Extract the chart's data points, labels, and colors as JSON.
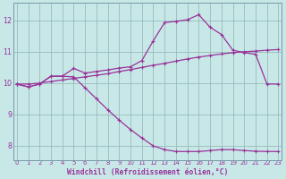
{
  "xlabel": "Windchill (Refroidissement éolien,°C)",
  "bg_color": "#c8e8e8",
  "line_color": "#993399",
  "grid_color": "#99bbbb",
  "spine_color": "#7799aa",
  "x_min": -0.3,
  "x_max": 23.3,
  "y_min": 7.55,
  "y_max": 12.55,
  "yticks": [
    8,
    9,
    10,
    11,
    12
  ],
  "xticks": [
    0,
    1,
    2,
    3,
    4,
    5,
    6,
    7,
    8,
    9,
    10,
    11,
    12,
    13,
    14,
    15,
    16,
    17,
    18,
    19,
    20,
    21,
    22,
    23
  ],
  "curve_upper": [
    [
      0,
      9.97
    ],
    [
      1,
      9.88
    ],
    [
      2,
      9.97
    ],
    [
      3,
      10.22
    ],
    [
      4,
      10.22
    ],
    [
      5,
      10.47
    ],
    [
      6,
      10.32
    ],
    [
      7,
      10.37
    ],
    [
      8,
      10.42
    ],
    [
      9,
      10.48
    ],
    [
      10,
      10.52
    ],
    [
      11,
      10.72
    ],
    [
      12,
      11.35
    ],
    [
      13,
      11.93
    ],
    [
      14,
      11.97
    ],
    [
      15,
      12.02
    ],
    [
      16,
      12.18
    ],
    [
      17,
      11.78
    ],
    [
      18,
      11.55
    ],
    [
      19,
      11.05
    ],
    [
      20,
      10.97
    ],
    [
      21,
      10.92
    ],
    [
      22,
      9.97
    ],
    [
      23,
      9.97
    ]
  ],
  "curve_lower": [
    [
      0,
      9.97
    ],
    [
      1,
      9.88
    ],
    [
      2,
      9.97
    ],
    [
      3,
      10.22
    ],
    [
      4,
      10.22
    ],
    [
      5,
      10.2
    ],
    [
      6,
      9.85
    ],
    [
      7,
      9.5
    ],
    [
      8,
      9.15
    ],
    [
      9,
      8.82
    ],
    [
      10,
      8.52
    ],
    [
      11,
      8.25
    ],
    [
      12,
      8.0
    ],
    [
      13,
      7.88
    ],
    [
      14,
      7.82
    ],
    [
      15,
      7.82
    ],
    [
      16,
      7.82
    ],
    [
      17,
      7.85
    ],
    [
      18,
      7.88
    ],
    [
      19,
      7.88
    ],
    [
      20,
      7.85
    ],
    [
      21,
      7.83
    ],
    [
      22,
      7.82
    ],
    [
      23,
      7.82
    ]
  ],
  "curve_linear": [
    [
      0,
      9.97
    ],
    [
      1,
      9.97
    ],
    [
      2,
      10.0
    ],
    [
      3,
      10.05
    ],
    [
      4,
      10.1
    ],
    [
      5,
      10.15
    ],
    [
      6,
      10.2
    ],
    [
      7,
      10.25
    ],
    [
      8,
      10.3
    ],
    [
      9,
      10.37
    ],
    [
      10,
      10.43
    ],
    [
      11,
      10.5
    ],
    [
      12,
      10.57
    ],
    [
      13,
      10.63
    ],
    [
      14,
      10.7
    ],
    [
      15,
      10.77
    ],
    [
      16,
      10.83
    ],
    [
      17,
      10.88
    ],
    [
      18,
      10.93
    ],
    [
      19,
      10.97
    ],
    [
      20,
      11.0
    ],
    [
      21,
      11.02
    ],
    [
      22,
      11.05
    ],
    [
      23,
      11.07
    ]
  ]
}
